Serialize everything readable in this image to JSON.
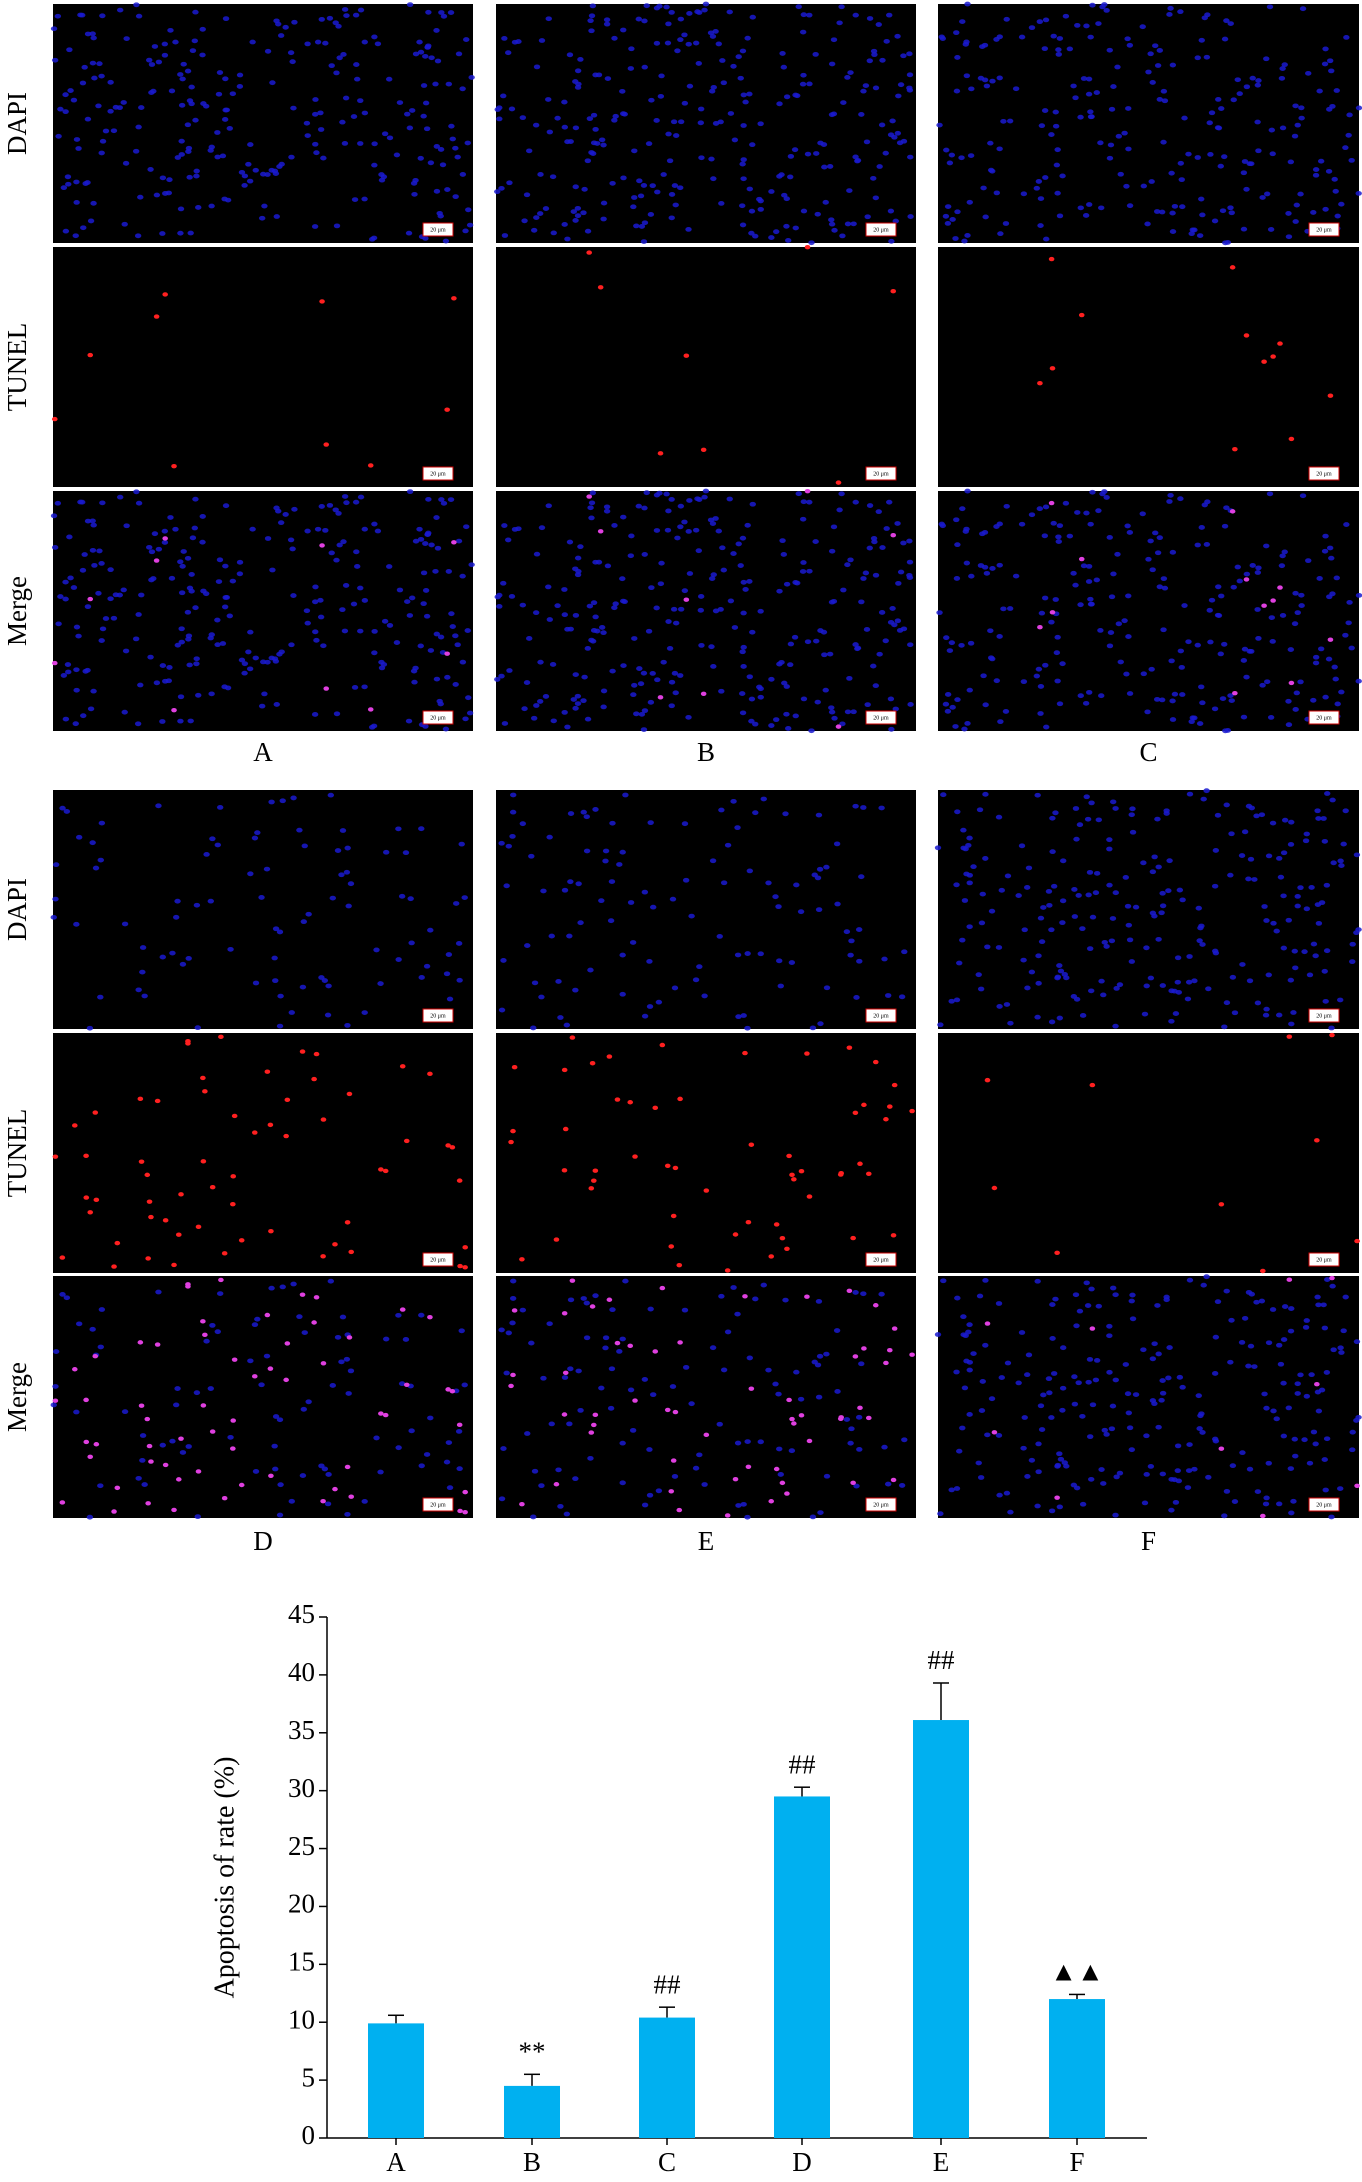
{
  "figure_panels": {
    "row_labels": [
      "DAPI",
      "TUNEL",
      "Merge"
    ],
    "groups": [
      [
        "A",
        "B",
        "C"
      ],
      [
        "D",
        "E",
        "F"
      ]
    ],
    "scale_bar": "20 μm"
  },
  "chart_data": {
    "type": "bar",
    "y_label": "Apoptosis of rate (%)",
    "categories": [
      "A",
      "B",
      "C",
      "D",
      "E",
      "F"
    ],
    "values": [
      9.9,
      4.5,
      10.4,
      29.5,
      36.1,
      12.0
    ],
    "errors": [
      0.7,
      1.0,
      0.9,
      0.8,
      3.2,
      0.4
    ],
    "annotations": [
      null,
      "**",
      "##",
      "##",
      "##",
      "▲▲"
    ],
    "color": "#00b0f0",
    "ylim": [
      0,
      45
    ],
    "yticks": [
      0,
      5,
      10,
      15,
      20,
      25,
      30,
      35,
      40,
      45
    ]
  }
}
